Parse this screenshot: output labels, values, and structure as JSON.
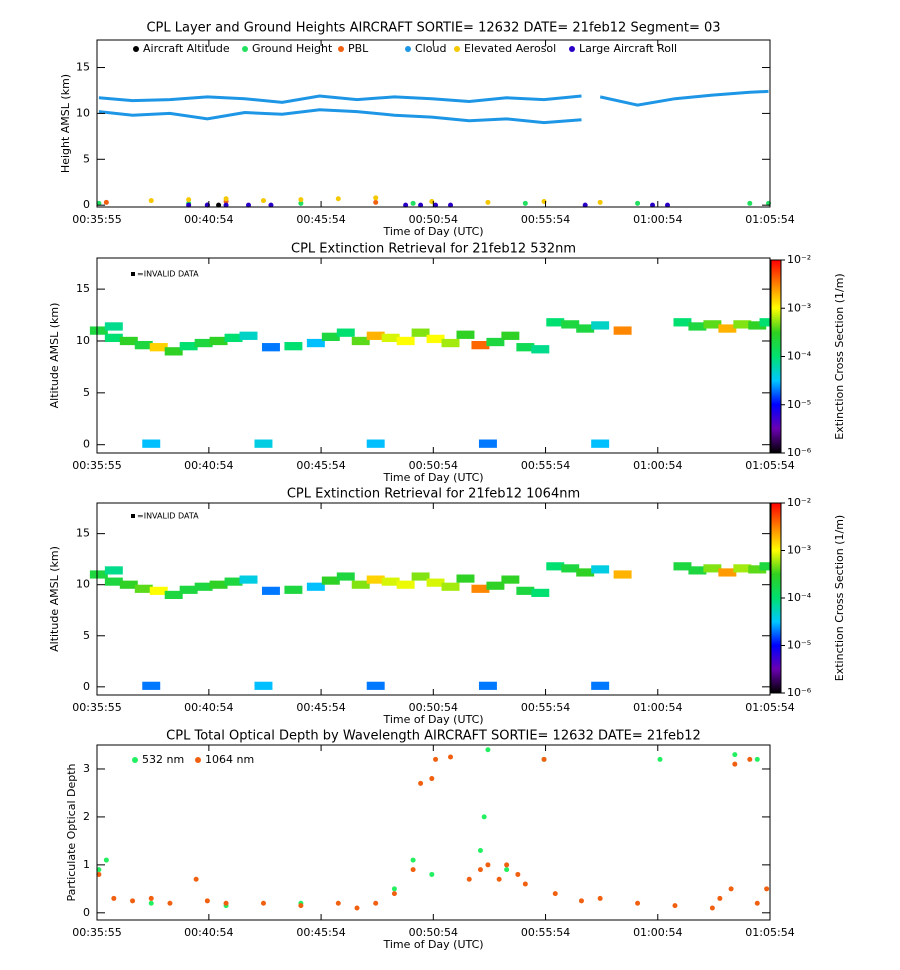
{
  "chart_data": [
    {
      "type": "scatter",
      "title": "CPL Layer and Ground Heights AIRCRAFT SORTIE= 12632 DATE= 21feb12 Segment= 03",
      "x_label": "Time of Day (UTC)",
      "y_label": "Height AMSL (km)",
      "xlim": [
        2155,
        3954
      ],
      "xticks": [
        {
          "value": 2155,
          "label": "00:35:55"
        },
        {
          "value": 2454,
          "label": "00:40:54"
        },
        {
          "value": 2754,
          "label": "00:45:54"
        },
        {
          "value": 3054,
          "label": "00:50:54"
        },
        {
          "value": 3354,
          "label": "00:55:54"
        },
        {
          "value": 3654,
          "label": "01:00:54"
        },
        {
          "value": 3954,
          "label": "01:05:54"
        }
      ],
      "ylim": [
        -0.2,
        18
      ],
      "yticks": [
        0,
        5,
        10,
        15
      ],
      "series": [
        {
          "name": "Aircraft Altitude",
          "color": "#000000",
          "x": [
            2450,
            2480
          ],
          "values": [
            0,
            0
          ]
        },
        {
          "name": "Ground Height",
          "color": "#22e060",
          "x": [
            2160,
            2400,
            2700,
            3000,
            3300,
            3600,
            3900,
            3950
          ],
          "values": [
            0.2,
            0.2,
            0.2,
            0.2,
            0.2,
            0.2,
            0.2,
            0.2
          ]
        },
        {
          "name": "PBL",
          "color": "#f06010",
          "x": [
            2180,
            2500,
            2900
          ],
          "values": [
            0.3,
            0.4,
            0.3
          ]
        },
        {
          "name": "Cloud",
          "color": "#1e96e6",
          "line": true,
          "x": [
            2160,
            2250,
            2350,
            2450,
            2550,
            2650,
            2750,
            2850,
            2950,
            3050,
            3150,
            3250,
            3350,
            3450,
            null,
            2160,
            2250,
            2350,
            2450,
            2550,
            2650,
            2750,
            2850,
            2950,
            3050,
            3150,
            3250,
            3350,
            3450,
            null,
            3500,
            3600,
            3700,
            3800,
            3900,
            3950
          ],
          "values": [
            11.7,
            11.4,
            11.5,
            11.8,
            11.6,
            11.2,
            11.9,
            11.5,
            11.8,
            11.6,
            11.3,
            11.7,
            11.5,
            11.9,
            null,
            10.2,
            9.8,
            10.0,
            9.4,
            10.1,
            9.9,
            10.4,
            10.2,
            9.8,
            9.6,
            9.2,
            9.4,
            9.0,
            9.3,
            null,
            11.8,
            10.9,
            11.6,
            12.0,
            12.3,
            12.4
          ]
        },
        {
          "name": "Elevated Aerosol",
          "color": "#f5c800",
          "x": [
            2300,
            2400,
            2500,
            2600,
            2700,
            2800,
            2900,
            3050,
            3200,
            3350,
            3500
          ],
          "values": [
            0.5,
            0.6,
            0.7,
            0.5,
            0.6,
            0.7,
            0.8,
            0.4,
            0.3,
            0.4,
            0.3
          ]
        },
        {
          "name": "Large Aircraft Roll",
          "color": "#2a00c8",
          "x": [
            2400,
            2450,
            2500,
            2560,
            2620,
            2980,
            3020,
            3060,
            3100,
            3460,
            3640,
            3680
          ],
          "values": [
            0,
            0,
            0,
            0,
            0,
            0,
            0,
            0,
            0,
            0,
            0,
            0
          ]
        }
      ]
    },
    {
      "type": "heatmap",
      "title": "CPL Extinction Retrieval for 21feb12     532nm",
      "x_label": "Time of Day (UTC)",
      "y_label": "Altitude AMSL (km)",
      "annotation": "=INVALID DATA",
      "xlim": [
        2155,
        3954
      ],
      "xticks": [
        {
          "value": 2155,
          "label": "00:35:55"
        },
        {
          "value": 2454,
          "label": "00:40:54"
        },
        {
          "value": 2754,
          "label": "00:45:54"
        },
        {
          "value": 3054,
          "label": "00:50:54"
        },
        {
          "value": 3354,
          "label": "00:55:54"
        },
        {
          "value": 3654,
          "label": "01:00:54"
        },
        {
          "value": 3954,
          "label": "01:05:54"
        }
      ],
      "ylim": [
        -0.8,
        18
      ],
      "yticks": [
        0,
        5,
        10,
        15
      ],
      "colorbar_label": "Extinction Cross Section (1/m)",
      "clog": true,
      "clim": [
        1e-06,
        0.01
      ],
      "cticks": [
        {
          "value": 0.01,
          "label": "10⁻²"
        },
        {
          "value": 0.001,
          "label": "10⁻³"
        },
        {
          "value": 0.0001,
          "label": "10⁻⁴"
        },
        {
          "value": 1e-05,
          "label": "10⁻⁵"
        },
        {
          "value": 1e-06,
          "label": "10⁻⁶"
        }
      ],
      "colormap": [
        "#000000",
        "#6a00b0",
        "#0000ff",
        "#00c8ff",
        "#00e070",
        "#30d020",
        "#ffff00",
        "#ff8000",
        "#ff0000"
      ],
      "x": [
        2160,
        2200,
        2240,
        2280,
        2320,
        2360,
        2400,
        2440,
        2200,
        2480,
        2520,
        2560,
        2620,
        2680,
        2740,
        2780,
        2820,
        2860,
        2900,
        2940,
        2980,
        3020,
        3060,
        3100,
        3140,
        3180,
        3220,
        3260,
        3300,
        3340,
        3380,
        3420,
        3460,
        3500,
        3560,
        3720,
        3760,
        3800,
        3840,
        3880,
        3920,
        3950,
        2300,
        2600,
        2900,
        3200,
        3500
      ],
      "y": [
        11.0,
        10.3,
        10.0,
        9.6,
        9.4,
        9.0,
        9.5,
        9.8,
        11.4,
        10.0,
        10.3,
        10.5,
        9.4,
        9.5,
        9.8,
        10.4,
        10.8,
        10.0,
        10.5,
        10.3,
        10.0,
        10.8,
        10.2,
        9.8,
        10.6,
        9.6,
        9.9,
        10.5,
        9.4,
        9.2,
        11.8,
        11.6,
        11.2,
        11.5,
        11.0,
        11.8,
        11.4,
        11.6,
        11.2,
        11.6,
        11.5,
        11.8,
        0.1,
        0.1,
        0.1,
        0.1,
        0.1
      ],
      "values": [
        0.0002,
        0.0001,
        0.0003,
        0.0002,
        0.0015,
        0.0003,
        0.0001,
        0.0002,
        8e-05,
        0.0003,
        0.0001,
        5e-05,
        2e-05,
        0.0001,
        3e-05,
        0.0002,
        0.0001,
        0.0004,
        0.002,
        0.0008,
        0.001,
        0.0005,
        0.001,
        0.0006,
        0.0003,
        0.004,
        0.0002,
        0.0003,
        0.00015,
        8e-05,
        0.0001,
        0.0002,
        0.0002,
        5e-05,
        0.003,
        0.0001,
        0.0002,
        0.0004,
        0.002,
        0.0005,
        0.0003,
        0.0001,
        3e-05,
        4e-05,
        3e-05,
        2e-05,
        3e-05
      ]
    },
    {
      "type": "heatmap",
      "title": "CPL Extinction Retrieval for 21feb12     1064nm",
      "x_label": "Time of Day (UTC)",
      "y_label": "Altitude AMSL (km)",
      "annotation": "=INVALID DATA",
      "xlim": [
        2155,
        3954
      ],
      "xticks": [
        {
          "value": 2155,
          "label": "00:35:55"
        },
        {
          "value": 2454,
          "label": "00:40:54"
        },
        {
          "value": 2754,
          "label": "00:45:54"
        },
        {
          "value": 3054,
          "label": "00:50:54"
        },
        {
          "value": 3354,
          "label": "00:55:54"
        },
        {
          "value": 3654,
          "label": "01:00:54"
        },
        {
          "value": 3954,
          "label": "01:05:54"
        }
      ],
      "ylim": [
        -0.8,
        18
      ],
      "yticks": [
        0,
        5,
        10,
        15
      ],
      "colorbar_label": "Extinction Cross Section (1/m)",
      "clog": true,
      "clim": [
        1e-06,
        0.01
      ],
      "cticks": [
        {
          "value": 0.01,
          "label": "10⁻²"
        },
        {
          "value": 0.001,
          "label": "10⁻³"
        },
        {
          "value": 0.0001,
          "label": "10⁻⁴"
        },
        {
          "value": 1e-05,
          "label": "10⁻⁵"
        },
        {
          "value": 1e-06,
          "label": "10⁻⁶"
        }
      ],
      "colormap": [
        "#000000",
        "#6a00b0",
        "#0000ff",
        "#00c8ff",
        "#00e070",
        "#30d020",
        "#ffff00",
        "#ff8000",
        "#ff0000"
      ],
      "x": [
        2160,
        2200,
        2240,
        2280,
        2320,
        2360,
        2400,
        2440,
        2200,
        2480,
        2520,
        2560,
        2620,
        2680,
        2740,
        2780,
        2820,
        2860,
        2900,
        2940,
        2980,
        3020,
        3060,
        3100,
        3140,
        3180,
        3220,
        3260,
        3300,
        3340,
        3380,
        3420,
        3460,
        3500,
        3560,
        3720,
        3760,
        3800,
        3840,
        3880,
        3920,
        3950,
        2300,
        2600,
        2900,
        3200,
        3500
      ],
      "y": [
        11.0,
        10.3,
        10.0,
        9.6,
        9.4,
        9.0,
        9.5,
        9.8,
        11.4,
        10.0,
        10.3,
        10.5,
        9.4,
        9.5,
        9.8,
        10.4,
        10.8,
        10.0,
        10.5,
        10.3,
        10.0,
        10.8,
        10.2,
        9.8,
        10.6,
        9.6,
        9.9,
        10.5,
        9.4,
        9.2,
        11.8,
        11.6,
        11.2,
        11.5,
        11.0,
        11.8,
        11.4,
        11.6,
        11.2,
        11.6,
        11.5,
        11.8,
        0.1,
        0.1,
        0.1,
        0.1,
        0.1
      ],
      "values": [
        0.0002,
        0.0002,
        0.0003,
        0.0004,
        0.001,
        0.0002,
        0.0002,
        0.0002,
        8e-05,
        0.0003,
        0.0002,
        4e-05,
        2e-05,
        0.0002,
        3e-05,
        0.0003,
        0.0002,
        0.0005,
        0.0015,
        0.0008,
        0.0009,
        0.0005,
        0.0008,
        0.0006,
        0.0003,
        0.003,
        0.0003,
        0.0003,
        0.0002,
        0.0001,
        0.0001,
        0.0002,
        0.0003,
        4e-05,
        0.002,
        0.0002,
        0.0002,
        0.0005,
        0.0025,
        0.0006,
        0.0004,
        0.0002,
        2e-05,
        3e-05,
        2e-05,
        2e-05,
        2e-05
      ]
    },
    {
      "type": "scatter",
      "title": "CPL Total Optical Depth by Wavelength AIRCRAFT SORTIE= 12632 DATE= 21feb12",
      "x_label": "Time of Day (UTC)",
      "y_label": "Particulate Optical Depth",
      "xlim": [
        2155,
        3954
      ],
      "xticks": [
        {
          "value": 2155,
          "label": "00:35:55"
        },
        {
          "value": 2454,
          "label": "00:40:54"
        },
        {
          "value": 2754,
          "label": "00:45:54"
        },
        {
          "value": 3054,
          "label": "00:50:54"
        },
        {
          "value": 3354,
          "label": "00:55:54"
        },
        {
          "value": 3654,
          "label": "01:00:54"
        },
        {
          "value": 3954,
          "label": "01:05:54"
        }
      ],
      "ylim": [
        -0.15,
        3.5
      ],
      "yticks": [
        0,
        1,
        2,
        3
      ],
      "series": [
        {
          "name": "532 nm",
          "color": "#22f060",
          "x": [
            2160,
            2180,
            2300,
            2500,
            2700,
            2950,
            3000,
            3050,
            3180,
            3190,
            3200,
            3250,
            3350,
            3660,
            3860,
            3920
          ],
          "values": [
            0.9,
            1.1,
            0.2,
            0.15,
            0.2,
            0.5,
            1.1,
            0.8,
            1.3,
            2.0,
            3.4,
            0.9,
            3.2,
            3.2,
            3.3,
            3.2
          ]
        },
        {
          "name": "1064 nm",
          "color": "#f06010",
          "x": [
            2160,
            2200,
            2250,
            2300,
            2350,
            2420,
            2450,
            2500,
            2600,
            2700,
            2800,
            2850,
            2900,
            2950,
            3000,
            3020,
            3050,
            3060,
            3100,
            3150,
            3180,
            3200,
            3230,
            3250,
            3280,
            3300,
            3350,
            3380,
            3450,
            3500,
            3600,
            3700,
            3800,
            3820,
            3850,
            3860,
            3900,
            3920,
            3945
          ],
          "values": [
            0.8,
            0.3,
            0.25,
            0.3,
            0.2,
            0.7,
            0.25,
            0.2,
            0.2,
            0.15,
            0.2,
            0.1,
            0.2,
            0.4,
            0.9,
            2.7,
            2.8,
            3.2,
            3.25,
            0.7,
            0.9,
            1.0,
            0.7,
            1.0,
            0.8,
            0.6,
            3.2,
            0.4,
            0.25,
            0.3,
            0.2,
            0.15,
            0.1,
            0.3,
            0.5,
            3.1,
            3.2,
            0.2,
            0.5
          ]
        }
      ]
    }
  ]
}
